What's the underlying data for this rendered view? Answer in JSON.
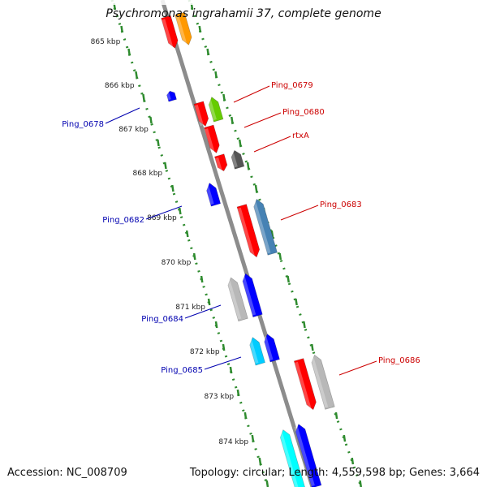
{
  "title": "Psychromonas ingrahamii 37, complete genome",
  "footer": {
    "accession": "Accession: NC_008709",
    "summary": "Topology: circular; Length: 4,559,598 bp; Genes: 3,664"
  },
  "scale_labels": [
    "865 kbp",
    "866 kbp",
    "867 kbp",
    "868 kbp",
    "869 kbp",
    "870 kbp",
    "871 kbp",
    "872 kbp",
    "873 kbp",
    "874 kbp"
  ],
  "gene_labels": {
    "left": [
      "Ping_0678",
      "Ping_0682",
      "Ping_0684",
      "Ping_0685"
    ],
    "right": [
      "Ping_0679",
      "Ping_0680",
      "rtxA",
      "Ping_0683",
      "Ping_0686"
    ]
  },
  "colors": {
    "backbone": "#8c8c8c",
    "scale_dots": "#2e8b2e",
    "left_label": "#0000b0",
    "right_label": "#cc0000",
    "tick_label": "#222222"
  },
  "features": [
    {
      "name": "cds-red-top",
      "color": "#ff0000"
    },
    {
      "name": "cds-orange-top",
      "color": "#ff9900"
    },
    {
      "name": "cds-blue-small",
      "color": "#0000ff"
    },
    {
      "name": "cds-red-1",
      "color": "#ff0000"
    },
    {
      "name": "cds-green",
      "color": "#66cc00"
    },
    {
      "name": "cds-red-2",
      "color": "#ff0000"
    },
    {
      "name": "cds-red-3",
      "color": "#ff0000"
    },
    {
      "name": "cds-gray-dark",
      "color": "#555555"
    },
    {
      "name": "cds-blue-2",
      "color": "#0000ff"
    },
    {
      "name": "cds-red-long",
      "color": "#ff0000"
    },
    {
      "name": "cds-steelblue",
      "color": "#4682b4"
    },
    {
      "name": "cds-lightgray",
      "color": "#b8b8b8"
    },
    {
      "name": "cds-blue-3",
      "color": "#0000ff"
    },
    {
      "name": "cds-cyan",
      "color": "#00ccff"
    },
    {
      "name": "cds-blue-4",
      "color": "#0000ff"
    },
    {
      "name": "cds-red-4",
      "color": "#ff0000"
    },
    {
      "name": "cds-lightgray-2",
      "color": "#b8b8b8"
    },
    {
      "name": "cds-cyan-2",
      "color": "#00ffff"
    },
    {
      "name": "cds-blue-5",
      "color": "#0000ff"
    }
  ]
}
